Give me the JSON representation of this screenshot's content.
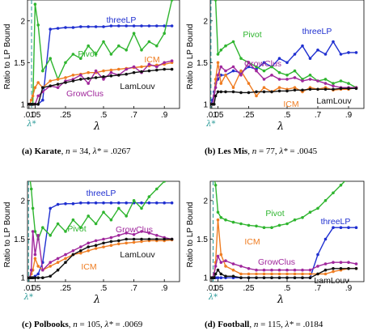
{
  "colors": {
    "threeLP": "#1f2fd0",
    "Pivot": "#2fb52f",
    "ICM": "#ef7d22",
    "GrowClus": "#a0279c",
    "LamLouv": "#111111",
    "lambdaStar": "#2a9a98"
  },
  "chart_data": [
    {
      "type": "line",
      "panel": "(a)",
      "dataset": "Karate",
      "n": "34",
      "lambda_star": ".0267",
      "lambda_star_value": 0.0267,
      "ylabel": "Ratio to LP Bound",
      "xlabel": "λ",
      "lambda_star_label": "λ*",
      "x_ticks": [
        ".01",
        ".05",
        ".25",
        ".5",
        ".7",
        ".9"
      ],
      "y_ticks": [
        "1",
        "1.5",
        "2"
      ],
      "ylim": [
        0.95,
        2.25
      ],
      "x": [
        0.002,
        0.015,
        0.025,
        0.035,
        0.05,
        0.07,
        0.1,
        0.15,
        0.2,
        0.25,
        0.3,
        0.35,
        0.4,
        0.45,
        0.5,
        0.55,
        0.6,
        0.65,
        0.7,
        0.75,
        0.8,
        0.85,
        0.9,
        0.95
      ],
      "series": [
        {
          "name": "threeLP",
          "values": [
            1.0,
            1.0,
            1.0,
            1.0,
            1.0,
            1.0,
            1.05,
            1.9,
            1.91,
            1.92,
            1.92,
            1.93,
            1.93,
            1.93,
            1.93,
            1.94,
            1.94,
            1.94,
            1.94,
            1.94,
            1.94,
            1.94,
            1.94,
            1.94
          ]
        },
        {
          "name": "Pivot",
          "values": [
            1.0,
            1.0,
            1.0,
            1.0,
            2.2,
            1.95,
            1.4,
            1.55,
            1.3,
            1.5,
            1.6,
            1.55,
            1.7,
            1.6,
            1.75,
            1.6,
            1.7,
            1.65,
            1.85,
            1.65,
            1.75,
            1.7,
            1.85,
            2.25
          ]
        },
        {
          "name": "ICM",
          "values": [
            1.0,
            1.0,
            1.05,
            1.1,
            1.2,
            1.26,
            1.2,
            1.28,
            1.3,
            1.32,
            1.35,
            1.36,
            1.38,
            1.38,
            1.4,
            1.41,
            1.42,
            1.43,
            1.44,
            1.45,
            1.46,
            1.47,
            1.48,
            1.5
          ]
        },
        {
          "name": "GrowClus",
          "values": [
            1.0,
            1.0,
            1.0,
            1.0,
            1.0,
            1.1,
            1.15,
            1.22,
            1.2,
            1.28,
            1.3,
            1.35,
            1.25,
            1.4,
            1.3,
            1.38,
            1.35,
            1.42,
            1.45,
            1.38,
            1.48,
            1.45,
            1.5,
            1.52
          ]
        },
        {
          "name": "LamLouv",
          "values": [
            1.0,
            1.0,
            1.0,
            1.0,
            1.0,
            1.0,
            1.2,
            1.22,
            1.24,
            1.26,
            1.28,
            1.3,
            1.31,
            1.32,
            1.33,
            1.34,
            1.35,
            1.36,
            1.38,
            1.39,
            1.4,
            1.41,
            1.42,
            1.42
          ]
        }
      ],
      "label_text": [
        "threeLP",
        "Pivot",
        "ICM",
        "GrowClus",
        "LamLouv"
      ]
    },
    {
      "type": "line",
      "panel": "(b)",
      "dataset": "Les Mis",
      "n": "77",
      "lambda_star": ".0045",
      "lambda_star_value": 0.0045,
      "ylabel": "Ratio to LP Bound",
      "xlabel": "λ",
      "lambda_star_label": "λ*",
      "x_ticks": [
        ".01",
        ".05",
        ".25",
        ".5",
        ".7",
        ".9"
      ],
      "y_ticks": [
        "1",
        "1.5",
        "2"
      ],
      "ylim": [
        0.95,
        2.25
      ],
      "x": [
        0.002,
        0.015,
        0.025,
        0.035,
        0.05,
        0.07,
        0.1,
        0.15,
        0.2,
        0.25,
        0.3,
        0.35,
        0.4,
        0.45,
        0.5,
        0.55,
        0.6,
        0.65,
        0.7,
        0.75,
        0.8,
        0.85,
        0.9,
        0.95
      ],
      "series": [
        {
          "name": "threeLP",
          "values": [
            1.0,
            1.05,
            1.15,
            1.25,
            1.3,
            1.35,
            1.35,
            1.4,
            1.38,
            1.45,
            1.42,
            1.5,
            1.45,
            1.55,
            1.5,
            1.6,
            1.7,
            1.55,
            1.65,
            1.6,
            1.75,
            1.6,
            1.62,
            1.62
          ]
        },
        {
          "name": "Pivot",
          "values": [
            2.4,
            2.35,
            2.3,
            2.25,
            1.6,
            1.65,
            1.7,
            1.75,
            1.55,
            1.5,
            1.45,
            1.4,
            1.45,
            1.38,
            1.35,
            1.4,
            1.3,
            1.35,
            1.28,
            1.3,
            1.25,
            1.28,
            1.25,
            1.2
          ]
        },
        {
          "name": "ICM",
          "values": [
            1.0,
            1.0,
            1.1,
            1.3,
            1.5,
            1.25,
            1.35,
            1.2,
            1.4,
            1.25,
            1.1,
            1.2,
            1.15,
            1.2,
            1.18,
            1.2,
            1.15,
            1.2,
            1.18,
            1.2,
            1.17,
            1.18,
            1.18,
            1.2
          ]
        },
        {
          "name": "GrowClus",
          "values": [
            1.0,
            1.0,
            1.1,
            1.2,
            1.35,
            1.45,
            1.4,
            1.45,
            1.35,
            1.5,
            1.4,
            1.3,
            1.35,
            1.3,
            1.3,
            1.32,
            1.28,
            1.3,
            1.28,
            1.25,
            1.22,
            1.2,
            1.2,
            1.2
          ]
        },
        {
          "name": "LamLouv",
          "values": [
            1.0,
            1.0,
            1.0,
            1.1,
            1.15,
            1.15,
            1.15,
            1.15,
            1.14,
            1.14,
            1.15,
            1.15,
            1.15,
            1.16,
            1.16,
            1.17,
            1.17,
            1.18,
            1.18,
            1.18,
            1.18,
            1.19,
            1.19,
            1.19
          ]
        }
      ],
      "label_text": [
        "threeLP",
        "Pivot",
        "GrowClus",
        "ICM",
        "LamLouv"
      ]
    },
    {
      "type": "line",
      "panel": "(c)",
      "dataset": "Polbooks",
      "n": "105",
      "lambda_star": ".0069",
      "lambda_star_value": 0.0069,
      "ylabel": "Ratio to LP Bound",
      "xlabel": "λ",
      "lambda_star_label": "λ*",
      "x_ticks": [
        ".01",
        ".05",
        ".25",
        ".5",
        ".7",
        ".9"
      ],
      "y_ticks": [
        "1",
        "1.5",
        "2"
      ],
      "ylim": [
        0.95,
        2.25
      ],
      "x": [
        0.002,
        0.015,
        0.025,
        0.035,
        0.05,
        0.07,
        0.1,
        0.15,
        0.2,
        0.25,
        0.3,
        0.35,
        0.4,
        0.45,
        0.5,
        0.55,
        0.6,
        0.65,
        0.7,
        0.75,
        0.8,
        0.85,
        0.9,
        0.95
      ],
      "series": [
        {
          "name": "threeLP",
          "values": [
            1.0,
            1.0,
            1.0,
            1.0,
            1.02,
            1.05,
            1.2,
            1.9,
            1.95,
            1.96,
            1.96,
            1.97,
            1.97,
            1.97,
            1.97,
            1.97,
            1.97,
            1.97,
            1.97,
            1.97,
            1.97,
            1.97,
            1.97,
            1.97
          ]
        },
        {
          "name": "Pivot",
          "values": [
            2.4,
            2.3,
            2.15,
            1.9,
            1.6,
            1.5,
            1.65,
            1.55,
            1.7,
            1.6,
            1.75,
            1.65,
            1.8,
            1.7,
            1.85,
            1.75,
            1.9,
            1.8,
            2.0,
            1.9,
            2.05,
            2.15,
            2.25,
            2.4
          ]
        },
        {
          "name": "ICM",
          "values": [
            1.0,
            1.0,
            1.05,
            1.1,
            1.25,
            1.15,
            1.1,
            1.15,
            1.2,
            1.25,
            1.3,
            1.32,
            1.35,
            1.38,
            1.4,
            1.42,
            1.44,
            1.45,
            1.46,
            1.47,
            1.48,
            1.48,
            1.48,
            1.49
          ]
        },
        {
          "name": "GrowClus",
          "values": [
            1.0,
            1.0,
            1.1,
            1.6,
            1.3,
            1.55,
            1.1,
            1.2,
            1.25,
            1.3,
            1.35,
            1.4,
            1.45,
            1.48,
            1.5,
            1.52,
            1.55,
            1.58,
            1.56,
            1.6,
            1.58,
            1.55,
            1.52,
            1.5
          ]
        },
        {
          "name": "LamLouv",
          "values": [
            1.0,
            1.0,
            1.0,
            1.0,
            1.0,
            1.0,
            1.0,
            1.02,
            1.1,
            1.2,
            1.3,
            1.35,
            1.4,
            1.42,
            1.45,
            1.47,
            1.48,
            1.5,
            1.5,
            1.5,
            1.5,
            1.5,
            1.5,
            1.5
          ]
        }
      ],
      "label_text": [
        "threeLP",
        "Pivot",
        "GrowClus",
        "ICM",
        "LamLouv"
      ]
    },
    {
      "type": "line",
      "panel": "(d)",
      "dataset": "Football",
      "n": "115",
      "lambda_star": ".0184",
      "lambda_star_value": 0.0184,
      "ylabel": "Ratio to LP Bound",
      "xlabel": "λ",
      "lambda_star_label": "λ*",
      "x_ticks": [
        ".01",
        ".05",
        ".25",
        ".5",
        ".7",
        ".9"
      ],
      "y_ticks": [
        "1",
        "1.5",
        "2"
      ],
      "ylim": [
        0.95,
        2.25
      ],
      "x": [
        0.002,
        0.015,
        0.025,
        0.035,
        0.05,
        0.07,
        0.1,
        0.15,
        0.2,
        0.25,
        0.3,
        0.35,
        0.4,
        0.45,
        0.5,
        0.55,
        0.6,
        0.65,
        0.7,
        0.75,
        0.8,
        0.85,
        0.9,
        0.95
      ],
      "series": [
        {
          "name": "threeLP",
          "values": [
            1.0,
            1.0,
            1.0,
            1.0,
            1.0,
            1.0,
            1.0,
            1.0,
            1.0,
            1.0,
            1.0,
            1.0,
            1.0,
            1.0,
            1.0,
            1.0,
            1.0,
            1.0,
            1.3,
            1.5,
            1.65,
            1.65,
            1.65,
            1.65
          ]
        },
        {
          "name": "Pivot",
          "values": [
            2.4,
            2.35,
            2.3,
            2.2,
            1.85,
            1.78,
            1.75,
            1.72,
            1.7,
            1.68,
            1.67,
            1.65,
            1.65,
            1.68,
            1.7,
            1.75,
            1.78,
            1.85,
            1.9,
            2.0,
            2.1,
            2.2,
            2.3,
            2.45
          ]
        },
        {
          "name": "ICM",
          "values": [
            1.0,
            1.0,
            1.05,
            1.2,
            1.75,
            1.3,
            1.15,
            1.1,
            1.05,
            1.05,
            1.05,
            1.05,
            1.05,
            1.05,
            1.05,
            1.05,
            1.05,
            1.05,
            1.05,
            1.05,
            1.08,
            1.1,
            1.12,
            1.12
          ]
        },
        {
          "name": "GrowClus",
          "values": [
            1.0,
            1.0,
            1.05,
            1.15,
            1.28,
            1.2,
            1.22,
            1.18,
            1.15,
            1.12,
            1.1,
            1.1,
            1.1,
            1.1,
            1.1,
            1.1,
            1.1,
            1.1,
            1.15,
            1.18,
            1.2,
            1.2,
            1.2,
            1.18
          ]
        },
        {
          "name": "LamLouv",
          "values": [
            1.0,
            1.0,
            1.0,
            1.05,
            1.1,
            1.05,
            1.02,
            1.02,
            1.0,
            1.0,
            1.0,
            1.0,
            1.0,
            1.0,
            1.0,
            1.0,
            1.0,
            1.0,
            1.05,
            1.1,
            1.12,
            1.12,
            1.12,
            1.12
          ]
        }
      ],
      "label_text": [
        "threeLP",
        "Pivot",
        "ICM",
        "GrowClus",
        "LamLouv"
      ]
    }
  ]
}
